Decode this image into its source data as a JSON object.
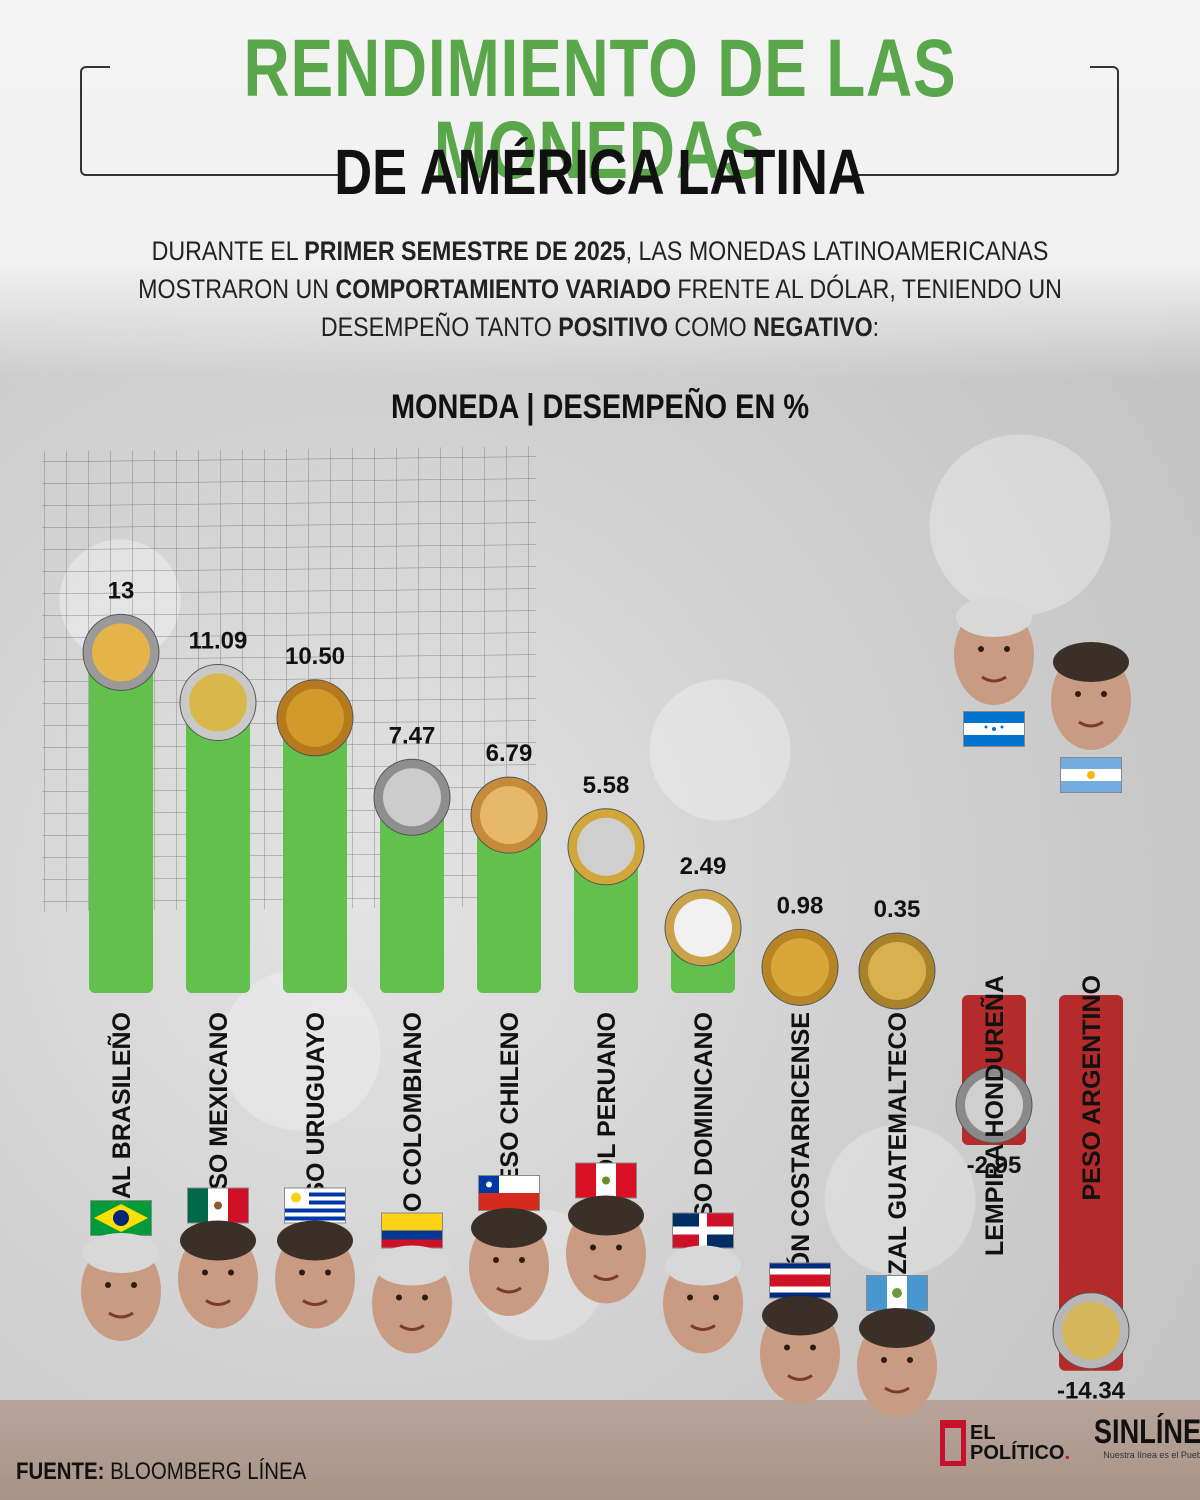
{
  "title": {
    "line1": "RENDIMIENTO DE LAS MONEDAS",
    "line2": "DE AMÉRICA LATINA"
  },
  "intro": {
    "p1": "DURANTE EL ",
    "b1": "PRIMER SEMESTRE DE 2025",
    "p2": ", LAS MONEDAS LATINOAMERICANAS MOSTRARON UN ",
    "b2": "COMPORTAMIENTO VARIADO",
    "p3": " FRENTE AL DÓLAR, TENIENDO UN DESEMPEÑO TANTO ",
    "b3": "POSITIVO",
    "p4": " COMO ",
    "b4": "NEGATIVO",
    "p5": ":"
  },
  "source": {
    "label": "FUENTE:",
    "value": "BLOOMBERG LÍNEA"
  },
  "logos": {
    "elpolitico_1": "EL",
    "elpolitico_2": "POLÍTICO",
    "sinlinea": "SINLÍNEA",
    "sinlinea_tag": "Nuestra línea es el Pueblo."
  },
  "colors": {
    "positive": "#62c04c",
    "negative": "#b52b2b",
    "title_green": "#5aa64a"
  },
  "chart_data": {
    "type": "bar",
    "title": "MONEDA | DESEMPEÑO EN %",
    "categories": [
      "REAL BRASILEÑO",
      "PESO MEXICANO",
      "PESO URUGUAYO",
      "PESO COLOMBIANO",
      "PESO CHILENO",
      "SOL PERUANO",
      "PESO DOMINICANO",
      "COLÓN COSTARRICENSE",
      "QUETZAL GUATEMALTECO",
      "LEMPIRA HONDUREÑA",
      "PESO ARGENTINO"
    ],
    "values": [
      13,
      11.09,
      10.5,
      7.47,
      6.79,
      5.58,
      2.49,
      0.98,
      0.35,
      -2.95,
      -14.34
    ],
    "value_labels": [
      "13",
      "11.09",
      "10.50",
      "7.47",
      "6.79",
      "5.58",
      "2.49",
      "0.98",
      "0.35",
      "-2.95",
      "-14.34"
    ],
    "flags": [
      "brazil-flag",
      "mexico-flag",
      "uruguay-flag",
      "colombia-flag",
      "chile-flag",
      "peru-flag",
      "dominican-republic-flag",
      "costa-rica-flag",
      "guatemala-flag",
      "honduras-flag",
      "argentina-flag"
    ]
  }
}
